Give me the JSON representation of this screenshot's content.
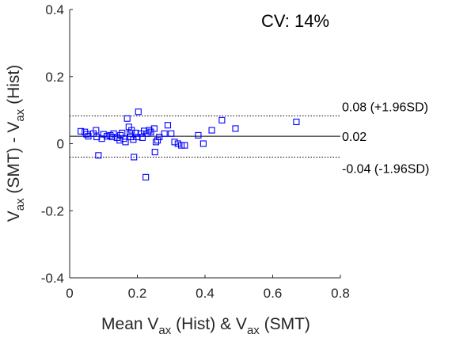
{
  "chart_data": {
    "type": "scatter",
    "title": "",
    "cv_label": "CV: 14%",
    "xlabel_parts": [
      "Mean V",
      "ax",
      " (Hist) & V",
      "ax",
      " (SMT)"
    ],
    "ylabel_parts": [
      "V",
      "ax",
      " (SMT) - V",
      "ax",
      " (Hist)"
    ],
    "xlim": [
      0,
      0.8
    ],
    "ylim": [
      -0.4,
      0.4
    ],
    "x_ticks": [
      0,
      0.2,
      0.4,
      0.6,
      0.8
    ],
    "x_tick_labels": [
      "0",
      "0.2",
      "0.4",
      "0.6",
      "0.8"
    ],
    "y_ticks": [
      -0.4,
      -0.2,
      0,
      0.2,
      0.4
    ],
    "y_tick_labels": [
      "-0.4",
      "-0.2",
      "0",
      "0.2",
      "0.4"
    ],
    "grid": false,
    "marker_color": "#0000ff",
    "lines": [
      {
        "y": 0.083,
        "style": "dotted",
        "label": "0.08 (+1.96SD)"
      },
      {
        "y": 0.022,
        "style": "solid",
        "label": "0.02"
      },
      {
        "y": -0.04,
        "style": "dotted",
        "label": "-0.04 (-1.96SD)"
      }
    ],
    "points": [
      [
        0.033,
        0.037
      ],
      [
        0.045,
        0.035
      ],
      [
        0.05,
        0.028
      ],
      [
        0.055,
        0.022
      ],
      [
        0.07,
        0.03
      ],
      [
        0.078,
        0.04
      ],
      [
        0.08,
        0.02
      ],
      [
        0.085,
        -0.035
      ],
      [
        0.095,
        0.015
      ],
      [
        0.1,
        0.028
      ],
      [
        0.11,
        0.022
      ],
      [
        0.12,
        0.025
      ],
      [
        0.125,
        0.02
      ],
      [
        0.13,
        0.03
      ],
      [
        0.14,
        0.018
      ],
      [
        0.148,
        0.01
      ],
      [
        0.15,
        0.025
      ],
      [
        0.155,
        0.032
      ],
      [
        0.16,
        0.015
      ],
      [
        0.165,
        0.005
      ],
      [
        0.17,
        0.075
      ],
      [
        0.175,
        0.05
      ],
      [
        0.178,
        0.03
      ],
      [
        0.18,
        0.02
      ],
      [
        0.183,
        0.04
      ],
      [
        0.188,
        0.012
      ],
      [
        0.19,
        -0.04
      ],
      [
        0.195,
        0.032
      ],
      [
        0.2,
        0.02
      ],
      [
        0.203,
        0.095
      ],
      [
        0.21,
        0.03
      ],
      [
        0.215,
        0.018
      ],
      [
        0.22,
        0.038
      ],
      [
        0.225,
        -0.1
      ],
      [
        0.23,
        0.03
      ],
      [
        0.235,
        0.04
      ],
      [
        0.24,
        0.035
      ],
      [
        0.25,
        0.045
      ],
      [
        0.252,
        -0.025
      ],
      [
        0.255,
        0.005
      ],
      [
        0.26,
        0.01
      ],
      [
        0.265,
        0.02
      ],
      [
        0.28,
        0.03
      ],
      [
        0.29,
        0.055
      ],
      [
        0.3,
        0.03
      ],
      [
        0.31,
        0.005
      ],
      [
        0.32,
        0.0
      ],
      [
        0.33,
        -0.005
      ],
      [
        0.34,
        -0.005
      ],
      [
        0.38,
        0.025
      ],
      [
        0.395,
        0.0
      ],
      [
        0.42,
        0.04
      ],
      [
        0.45,
        0.07
      ],
      [
        0.49,
        0.045
      ],
      [
        0.67,
        0.065
      ]
    ]
  }
}
